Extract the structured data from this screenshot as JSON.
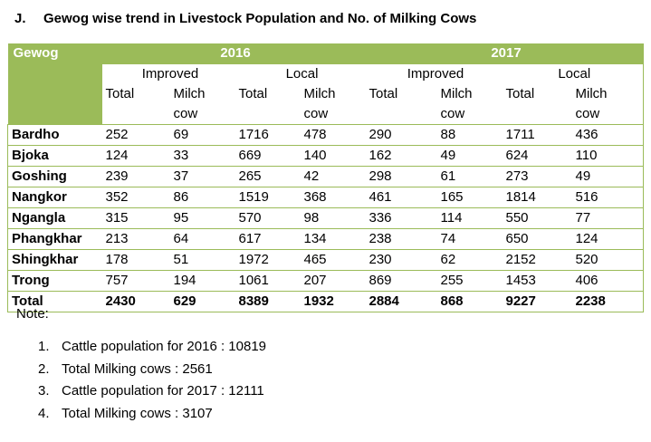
{
  "heading": {
    "number": "J.",
    "title": "Gewog wise trend in Livestock Population and No. of Milking Cows"
  },
  "table": {
    "gewog_header": "Gewog",
    "years": [
      "2016",
      "2017"
    ],
    "groups": [
      "Improved",
      "Local",
      "Improved",
      "Local"
    ],
    "col_line1": [
      "Total",
      "Milch",
      "Total",
      "Milch",
      "Total",
      "Milch",
      "Total",
      "Milch"
    ],
    "col_line2": [
      "",
      "cow",
      "",
      "cow",
      "",
      "cow",
      "",
      "cow"
    ],
    "rows": [
      {
        "name": "Bardho",
        "values": [
          "252",
          "69",
          "1716",
          "478",
          "290",
          "88",
          "1711",
          "436"
        ]
      },
      {
        "name": "Bjoka",
        "values": [
          "124",
          "33",
          "669",
          "140",
          "162",
          "49",
          "624",
          "110"
        ]
      },
      {
        "name": "Goshing",
        "values": [
          "239",
          "37",
          "265",
          "42",
          "298",
          "61",
          "273",
          "49"
        ]
      },
      {
        "name": "Nangkor",
        "values": [
          "352",
          "86",
          "1519",
          "368",
          "461",
          "165",
          "1814",
          "516"
        ]
      },
      {
        "name": "Ngangla",
        "values": [
          "315",
          "95",
          "570",
          "98",
          "336",
          "114",
          "550",
          "77"
        ]
      },
      {
        "name": "Phangkhar",
        "values": [
          "213",
          "64",
          "617",
          "134",
          "238",
          "74",
          "650",
          "124"
        ]
      },
      {
        "name": "Shingkhar",
        "values": [
          "178",
          "51",
          "1972",
          "465",
          "230",
          "62",
          "2152",
          "520"
        ]
      },
      {
        "name": "Trong",
        "values": [
          "757",
          "194",
          "1061",
          "207",
          "869",
          "255",
          "1453",
          "406"
        ]
      }
    ],
    "total": {
      "name": "Total",
      "values": [
        "2430",
        "629",
        "8389",
        "1932",
        "2884",
        "868",
        "9227",
        "2238"
      ]
    }
  },
  "note_label": "Note:",
  "notes": [
    {
      "n": "1.",
      "text": "Cattle population for 2016 : 10819"
    },
    {
      "n": "2.",
      "text": "Total Milking cows : 2561"
    },
    {
      "n": "3.",
      "text": "Cattle population for 2017 :  12111"
    },
    {
      "n": "4.",
      "text": "Total Milking cows : 3107"
    }
  ]
}
